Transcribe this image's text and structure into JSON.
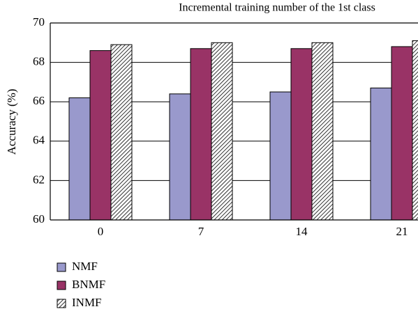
{
  "chart_data": {
    "type": "bar",
    "title": "Incremental training number of the 1st class",
    "y_label": "Accuracy (%)",
    "categories": [
      "0",
      "7",
      "14",
      "21"
    ],
    "series": [
      {
        "name": "NMF",
        "color": "#9999cc",
        "values": [
          66.2,
          66.4,
          66.5,
          66.7
        ]
      },
      {
        "name": "BNMF",
        "color": "#993366",
        "values": [
          68.6,
          68.7,
          68.7,
          68.8
        ]
      },
      {
        "name": "INMF",
        "color": "#ffffff",
        "hatch": true,
        "values": [
          68.9,
          69.0,
          69.0,
          69.1
        ]
      }
    ],
    "ylim": [
      60,
      70
    ],
    "yticks": [
      60,
      62,
      64,
      66,
      68,
      70
    ],
    "grid": true,
    "legend": "bottom-left"
  }
}
